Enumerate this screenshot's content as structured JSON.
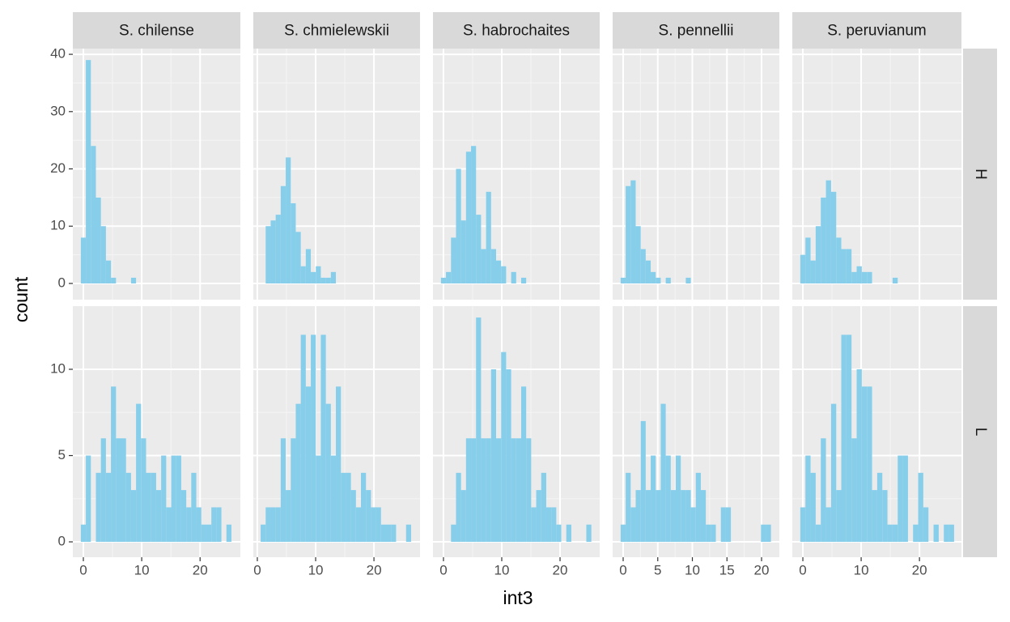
{
  "chart_data": {
    "type": "histogram",
    "x_label": "int3",
    "y_label": "count",
    "color": "#87ceeb",
    "grid": true,
    "columns": [
      {
        "label": "S. chilense",
        "xlim": [
          -1.8,
          26.9
        ],
        "xticks": [
          0,
          10,
          20
        ],
        "bins": [
          -0.43,
          0.43,
          1.29,
          2.15,
          3.01,
          3.87,
          4.73,
          5.59,
          6.45,
          7.31,
          8.17,
          9.03,
          9.89,
          10.75,
          11.61,
          12.47,
          13.33,
          14.19,
          15.05,
          15.91,
          16.77,
          17.63,
          18.49,
          19.35,
          20.21,
          21.07,
          21.93,
          22.79,
          23.65,
          24.51,
          25.37
        ]
      },
      {
        "label": "S. chmielewskii",
        "xlim": [
          -0.69,
          27.9
        ],
        "xticks": [
          0,
          10,
          20
        ],
        "bins": [
          0.57,
          1.43,
          2.29,
          3.15,
          4.01,
          4.87,
          5.73,
          6.59,
          7.45,
          8.31,
          9.17,
          10.03,
          10.89,
          11.75,
          12.61,
          13.47,
          14.33,
          15.19,
          16.05,
          16.91,
          17.77,
          18.63,
          19.49,
          20.35,
          21.21,
          22.07,
          22.93,
          23.79,
          24.65,
          25.51,
          26.37
        ]
      },
      {
        "label": "S. habrochaites",
        "xlim": [
          -1.8,
          26.8
        ],
        "xticks": [
          0,
          10,
          20
        ],
        "bins": [
          -0.43,
          0.43,
          1.29,
          2.15,
          3.01,
          3.87,
          4.73,
          5.59,
          6.45,
          7.31,
          8.17,
          9.03,
          9.89,
          10.75,
          11.61,
          12.47,
          13.33,
          14.19,
          15.05,
          15.91,
          16.77,
          17.63,
          18.49,
          19.35,
          20.21,
          21.07,
          21.93,
          22.79,
          23.65,
          24.51,
          25.37
        ]
      },
      {
        "label": "S. pennellii",
        "xlim": [
          -1.52,
          22.57
        ],
        "xticks": [
          0,
          5,
          10,
          15,
          20
        ],
        "bins": [
          -0.362,
          0.362,
          1.086,
          1.81,
          2.534,
          3.258,
          3.982,
          4.706,
          5.43,
          6.154,
          6.878,
          7.602,
          8.326,
          9.05,
          9.774,
          10.498,
          11.222,
          11.946,
          12.67,
          13.394,
          14.118,
          14.842,
          15.566,
          16.29,
          17.014,
          17.738,
          18.462,
          19.186,
          19.91,
          20.634,
          21.358
        ]
      },
      {
        "label": "S. peruvianum",
        "xlim": [
          -1.81,
          27.2
        ],
        "xticks": [
          0,
          10,
          20
        ],
        "bins": [
          -0.44,
          0.44,
          1.32,
          2.2,
          3.08,
          3.96,
          4.84,
          5.72,
          6.59,
          7.47,
          8.35,
          9.23,
          10.11,
          10.99,
          11.87,
          12.75,
          13.63,
          14.51,
          15.39,
          16.27,
          17.15,
          18.03,
          18.9,
          19.78,
          20.66,
          21.54,
          22.42,
          23.3,
          24.18,
          25.06,
          25.94
        ]
      }
    ],
    "rows": [
      {
        "label": "H",
        "ylim": [
          -2.83,
          41.0
        ],
        "yticks": [
          0,
          10,
          20,
          30,
          40
        ]
      },
      {
        "label": "L",
        "ylim": [
          -0.89,
          13.66
        ],
        "yticks": [
          0,
          5,
          10
        ]
      }
    ],
    "values": [
      [
        [
          8,
          39,
          24,
          15,
          10,
          4,
          1,
          0,
          0,
          0,
          1,
          0,
          0,
          0,
          0,
          0,
          0,
          0,
          0,
          0,
          0,
          0,
          0,
          0,
          0,
          0,
          0,
          0,
          0,
          0
        ],
        [
          0,
          10,
          11,
          12,
          17,
          22,
          14,
          9,
          3,
          6,
          2,
          3,
          1,
          1,
          2,
          0,
          0,
          0,
          0,
          0,
          0,
          0,
          0,
          0,
          0,
          0,
          0,
          0,
          0,
          0
        ],
        [
          1,
          2,
          8,
          20,
          11,
          23,
          24,
          12,
          6,
          16,
          6,
          4,
          3,
          0,
          2,
          0,
          1,
          0,
          0,
          0,
          0,
          0,
          0,
          0,
          0,
          0,
          0,
          0,
          0,
          0
        ],
        [
          1,
          17,
          18,
          10,
          6,
          4,
          2,
          1,
          0,
          1,
          0,
          0,
          0,
          1,
          0,
          0,
          0,
          0,
          0,
          0,
          0,
          0,
          0,
          0,
          0,
          0,
          0,
          0,
          0,
          0
        ],
        [
          5,
          8,
          4,
          10,
          15,
          18,
          16,
          8,
          6,
          6,
          2,
          3,
          2,
          2,
          0,
          0,
          0,
          0,
          1,
          0,
          0,
          0,
          0,
          0,
          0,
          0,
          0,
          0,
          0,
          0
        ]
      ],
      [
        [
          1,
          5,
          0,
          4,
          6,
          4,
          9,
          6,
          6,
          4,
          3,
          8,
          6,
          4,
          4,
          3,
          5,
          2,
          5,
          5,
          3,
          2,
          4,
          2,
          1,
          1,
          2,
          2,
          0,
          1
        ],
        [
          1,
          2,
          2,
          2,
          6,
          3,
          6,
          8,
          12,
          9,
          12,
          5,
          12,
          8,
          5,
          9,
          4,
          4,
          3,
          2,
          4,
          3,
          2,
          2,
          1,
          1,
          1,
          0,
          0,
          1
        ],
        [
          0,
          0,
          1,
          4,
          3,
          6,
          6,
          13,
          6,
          6,
          10,
          6,
          11,
          10,
          6,
          6,
          9,
          6,
          2,
          3,
          4,
          2,
          2,
          1,
          0,
          1,
          0,
          0,
          0,
          1
        ],
        [
          1,
          4,
          2,
          3,
          7,
          3,
          5,
          3,
          8,
          5,
          3,
          5,
          3,
          3,
          2,
          4,
          3,
          1,
          1,
          0,
          2,
          2,
          0,
          0,
          0,
          0,
          0,
          0,
          1,
          1
        ],
        [
          2,
          5,
          4,
          1,
          6,
          2,
          8,
          3,
          12,
          12,
          6,
          10,
          9,
          9,
          3,
          4,
          3,
          1,
          1,
          5,
          5,
          0,
          1,
          4,
          2,
          0,
          1,
          0,
          1,
          1
        ]
      ]
    ]
  }
}
